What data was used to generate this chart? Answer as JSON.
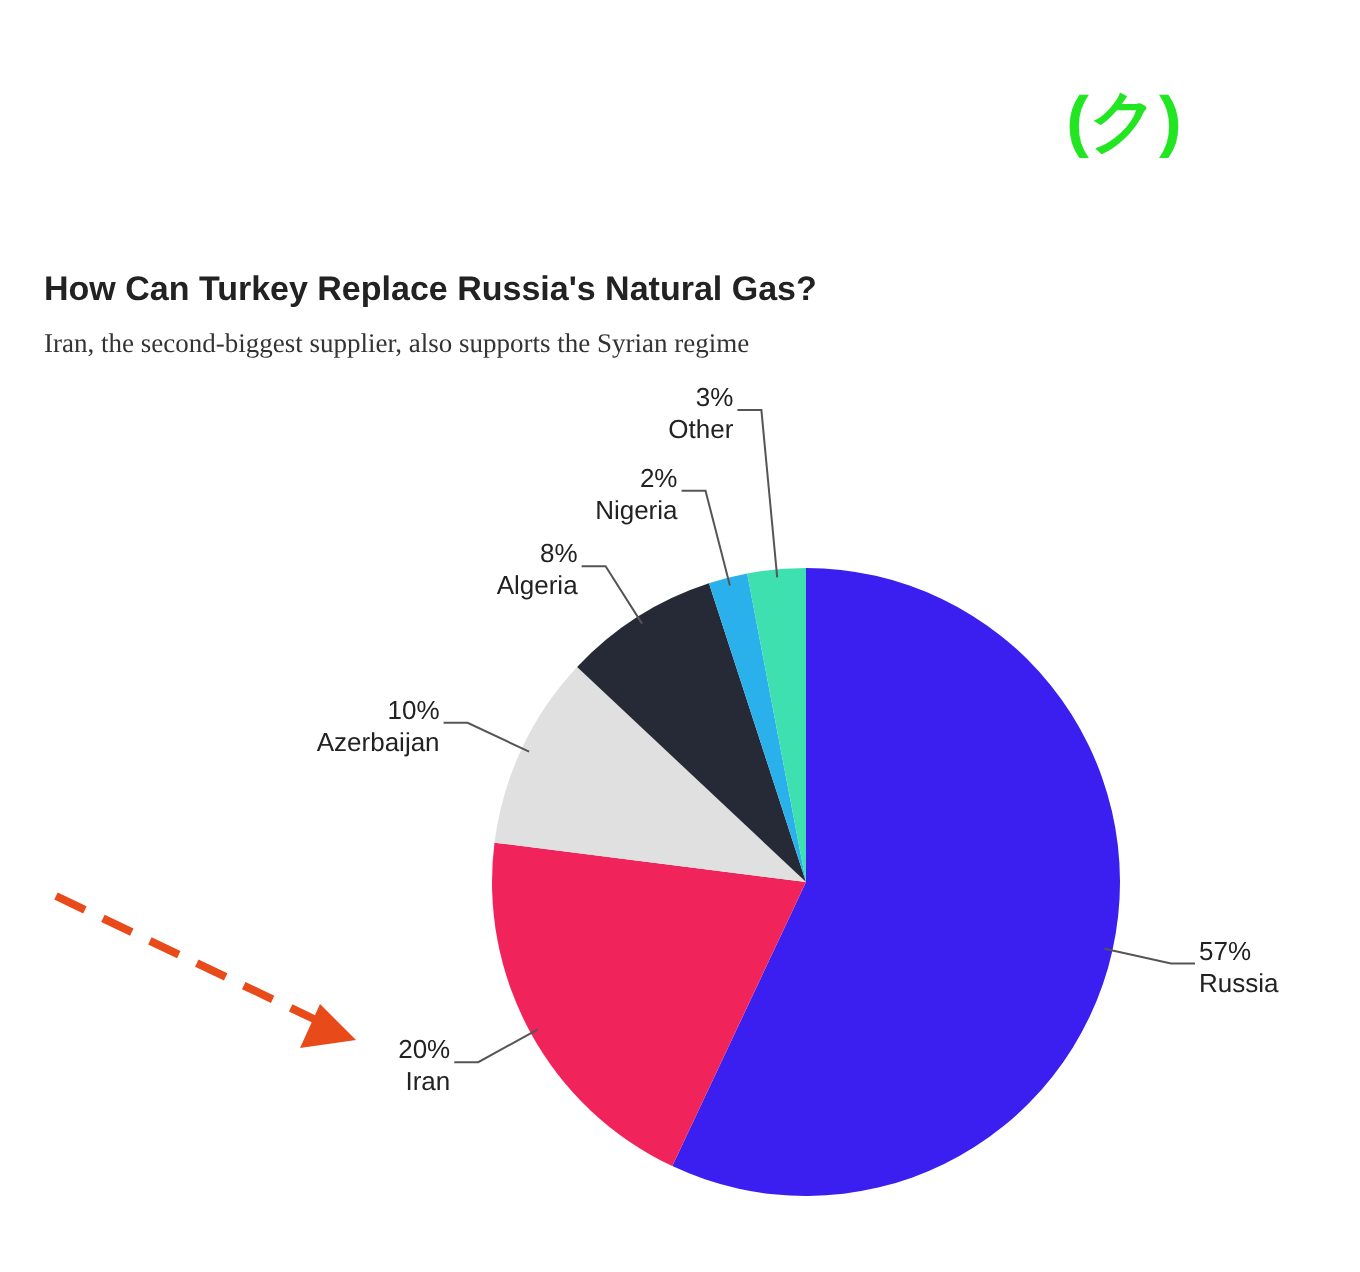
{
  "chart_data": {
    "type": "pie",
    "title": "How Can Turkey Replace Russia's Natural Gas?",
    "subtitle": "Iran, the second-biggest supplier, also supports the Syrian regime",
    "categories": [
      "Russia",
      "Iran",
      "Azerbaijan",
      "Algeria",
      "Nigeria",
      "Other"
    ],
    "values": [
      57,
      20,
      10,
      8,
      2,
      3
    ],
    "colors": [
      "#3a1ff0",
      "#f0245a",
      "#e0e0e0",
      "#262a36",
      "#2ab0ea",
      "#3ee0b0"
    ],
    "value_labels": [
      "57%",
      "20%",
      "10%",
      "8%",
      "2%",
      "3%"
    ],
    "annotations": [
      "(ク)"
    ]
  }
}
